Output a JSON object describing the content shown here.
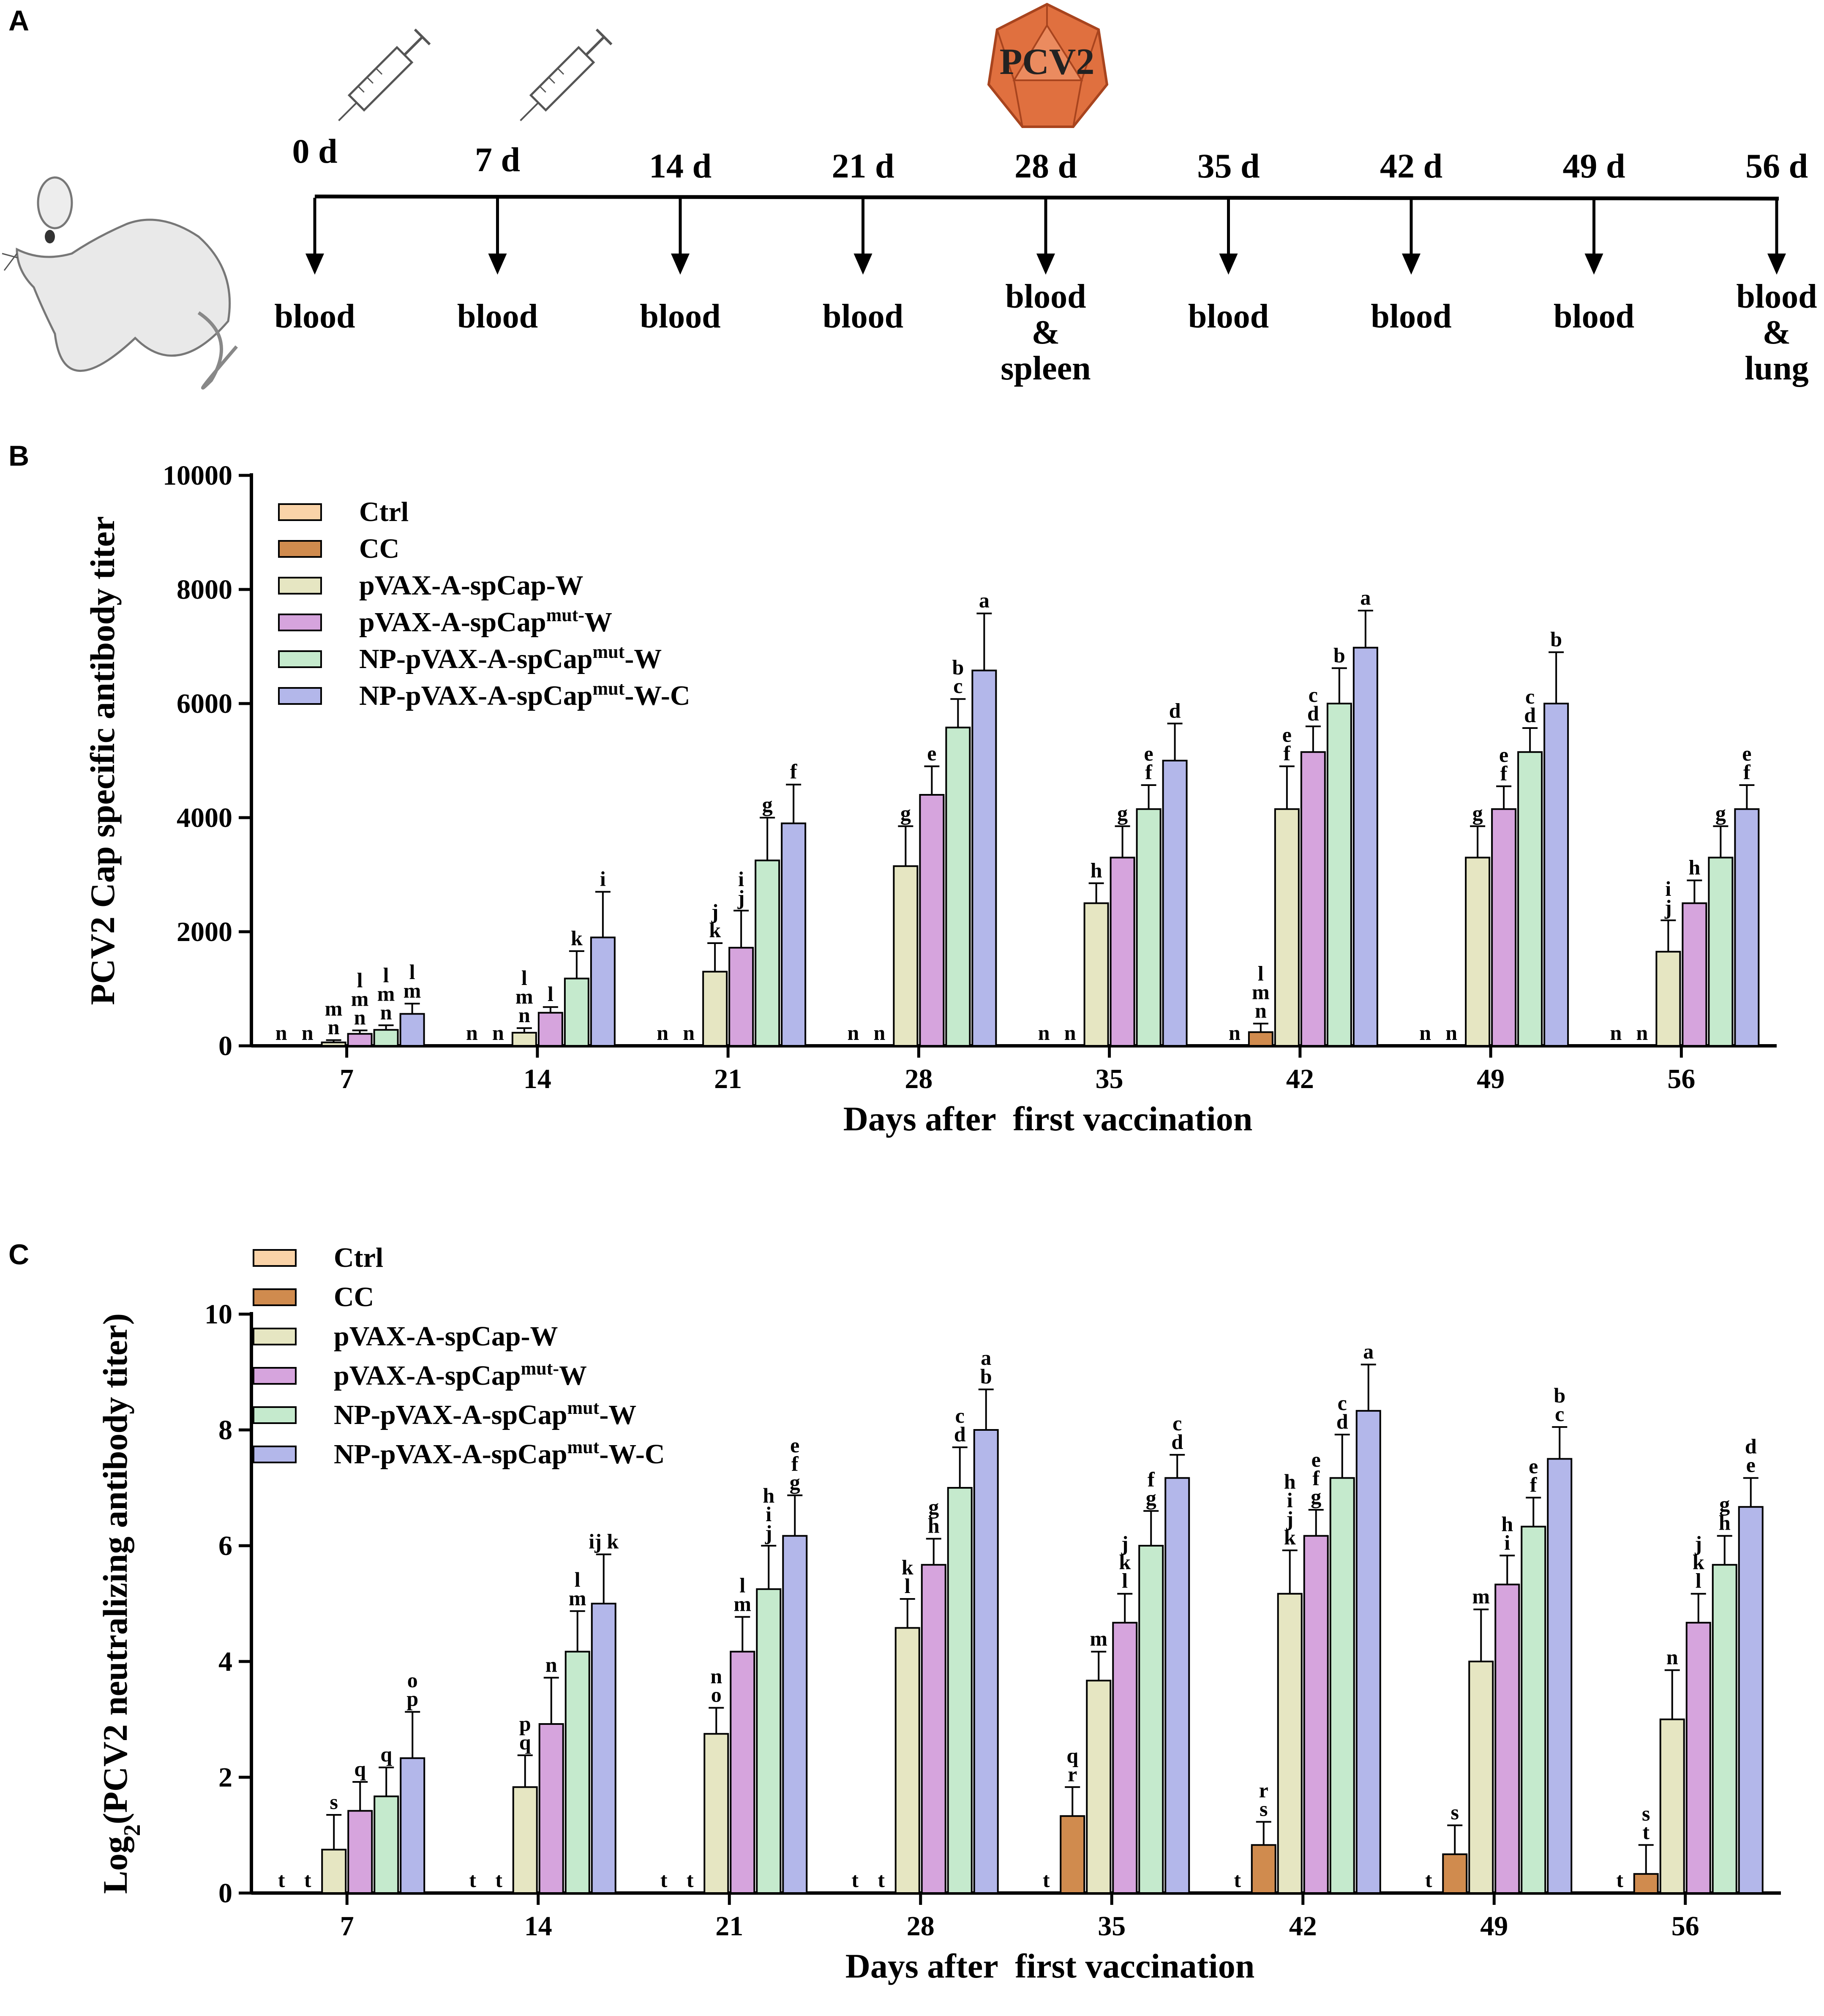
{
  "panels": {
    "a": "A",
    "b": "B",
    "c": "C"
  },
  "timeline": {
    "virus_label": "PCV2",
    "days": [
      "0 d",
      "7 d",
      "14 d",
      "21 d",
      "28 d",
      "35 d",
      "42 d",
      "49 d",
      "56 d"
    ],
    "samples": [
      [
        "blood"
      ],
      [
        "blood"
      ],
      [
        "blood"
      ],
      [
        "blood"
      ],
      [
        "blood",
        "&",
        "spleen"
      ],
      [
        "blood"
      ],
      [
        "blood"
      ],
      [
        "blood"
      ],
      [
        "blood",
        "&",
        "lung"
      ]
    ],
    "injection_days": [
      "0 d",
      "7 d"
    ]
  },
  "legend": [
    {
      "base": "Ctrl",
      "sup": "",
      "tail": "",
      "color": "#FAD3A8"
    },
    {
      "base": "CC",
      "sup": "",
      "tail": "",
      "color": "#D08B4E"
    },
    {
      "base": "pVAX-A-spCap-W",
      "sup": "",
      "tail": "",
      "color": "#E6E6C2"
    },
    {
      "base": "pVAX-A-spCap",
      "sup": "mut-",
      "tail": "W",
      "color": "#D6A4DD"
    },
    {
      "base": "NP-pVAX-A-spCap",
      "sup": "mut",
      "tail": "-W",
      "color": "#C5EACD"
    },
    {
      "base": "NP-pVAX-A-spCap",
      "sup": "mut",
      "tail": "-W-C",
      "color": "#B3B7EA"
    }
  ],
  "chart_data": [
    {
      "type": "bar",
      "id": "B",
      "title": "",
      "xlabel": "Days after  first vaccination",
      "ylabel": "PCV2 Cap specific antibody titer",
      "ylim": [
        0,
        10000
      ],
      "yticks": [
        "0",
        "2000",
        "4000",
        "6000",
        "8000",
        "10000"
      ],
      "categories": [
        "7",
        "14",
        "21",
        "28",
        "35",
        "42",
        "49",
        "56"
      ],
      "series": [
        {
          "name": "Ctrl",
          "values": [
            0,
            0,
            0,
            0,
            0,
            0,
            0,
            0
          ],
          "errors": [
            0,
            0,
            0,
            0,
            0,
            0,
            0,
            0
          ],
          "labels": [
            "n",
            "n",
            "n",
            "n",
            "n",
            "n",
            "n",
            "n"
          ]
        },
        {
          "name": "CC",
          "values": [
            0,
            0,
            0,
            0,
            0,
            240,
            0,
            0
          ],
          "errors": [
            0,
            0,
            0,
            0,
            0,
            150,
            0,
            0
          ],
          "labels": [
            "n",
            "n",
            "n",
            "n",
            "n",
            "l\nm\nn",
            "n",
            "n"
          ]
        },
        {
          "name": "pVAX-A-spCap-W",
          "values": [
            60,
            230,
            1300,
            3150,
            2500,
            4150,
            3300,
            1650
          ],
          "errors": [
            40,
            80,
            500,
            700,
            350,
            750,
            550,
            550
          ],
          "labels": [
            "m\nn",
            "l\nm\nn",
            "j\nk",
            "g",
            "h",
            "e\nf",
            "g",
            "i\nj"
          ]
        },
        {
          "name": "pVAX-A-spCapmut-W",
          "values": [
            210,
            580,
            1720,
            4400,
            3300,
            5150,
            4150,
            2500
          ],
          "errors": [
            60,
            100,
            650,
            500,
            550,
            450,
            400,
            400
          ],
          "labels": [
            "l\nm\nn",
            "l",
            "i\nj",
            "e",
            "g",
            "c\nd",
            "e\nf",
            "h"
          ]
        },
        {
          "name": "NP-pVAX-A-spCapmut-W",
          "values": [
            280,
            1180,
            3250,
            5580,
            4150,
            6000,
            5150,
            3300
          ],
          "errors": [
            80,
            480,
            750,
            500,
            420,
            620,
            420,
            550
          ],
          "labels": [
            "l\nm\nn",
            "k",
            "g",
            "b\nc",
            "e\nf",
            "b",
            "c\nd",
            "g"
          ]
        },
        {
          "name": "NP-pVAX-A-spCapmut-W-C",
          "values": [
            560,
            1900,
            3900,
            6580,
            5000,
            6980,
            6000,
            4150
          ],
          "errors": [
            180,
            800,
            680,
            1000,
            650,
            650,
            900,
            420
          ],
          "labels": [
            "l\nm",
            "i",
            "f",
            "a",
            "d",
            "a",
            "b",
            "e\nf"
          ]
        }
      ]
    },
    {
      "type": "bar",
      "id": "C",
      "title": "",
      "xlabel": "Days after  first vaccination",
      "ylabel_base": "Log",
      "ylabel_sub": "2",
      "ylabel_tail": "(PCV2 neutralizing antibody titer)",
      "ylim": [
        0,
        10
      ],
      "yticks": [
        "0",
        "2",
        "4",
        "6",
        "8",
        "10"
      ],
      "categories": [
        "7",
        "14",
        "21",
        "28",
        "35",
        "42",
        "49",
        "56"
      ],
      "series": [
        {
          "name": "Ctrl",
          "values": [
            0,
            0,
            0,
            0,
            0,
            0,
            0,
            0
          ],
          "errors": [
            0,
            0,
            0,
            0,
            0,
            0,
            0,
            0
          ],
          "labels": [
            "t",
            "t",
            "t",
            "t",
            "t",
            "t",
            "t",
            "t"
          ]
        },
        {
          "name": "CC",
          "values": [
            0,
            0,
            0,
            0,
            1.33,
            0.83,
            0.67,
            0.33
          ],
          "errors": [
            0,
            0,
            0,
            0,
            0.5,
            0.4,
            0.5,
            0.5
          ],
          "labels": [
            "t",
            "t",
            "t",
            "t",
            "q\nr",
            "r\ns",
            "s",
            "s\nt"
          ]
        },
        {
          "name": "pVAX-A-spCap-W",
          "values": [
            0.75,
            1.83,
            2.75,
            4.58,
            3.67,
            5.17,
            4.0,
            3.0
          ],
          "errors": [
            0.6,
            0.55,
            0.45,
            0.5,
            0.5,
            0.75,
            0.9,
            0.85
          ],
          "labels": [
            "s",
            "p\nq",
            "n\no",
            "k\nl",
            "m",
            "h\ni\nj\nk",
            "m",
            "n"
          ]
        },
        {
          "name": "pVAX-A-spCapmut-W",
          "values": [
            1.42,
            2.92,
            4.17,
            5.67,
            4.67,
            6.17,
            5.33,
            4.67
          ],
          "errors": [
            0.5,
            0.8,
            0.6,
            0.45,
            0.5,
            0.45,
            0.5,
            0.5
          ],
          "labels": [
            "q",
            "n",
            "l\nm",
            "g\nh",
            "j\nk\nl",
            "e\nf\ng",
            "h\ni",
            "j\nk\nl"
          ]
        },
        {
          "name": "NP-pVAX-A-spCapmut-W",
          "values": [
            1.67,
            4.17,
            5.25,
            7.0,
            6.0,
            7.17,
            6.33,
            5.67
          ],
          "errors": [
            0.5,
            0.7,
            0.75,
            0.7,
            0.6,
            0.75,
            0.5,
            0.5
          ],
          "labels": [
            "q",
            "l\nm",
            "h\ni\nj",
            "c\nd",
            "f\ng",
            "c\nd",
            "e\nf",
            "g\nh"
          ]
        },
        {
          "name": "NP-pVAX-A-spCapmut-W-C",
          "values": [
            2.33,
            5.0,
            6.17,
            8.0,
            7.17,
            8.33,
            7.5,
            6.67
          ],
          "errors": [
            0.8,
            0.85,
            0.7,
            0.7,
            0.4,
            0.8,
            0.55,
            0.5
          ],
          "labels": [
            "o\np",
            "ij k",
            "e\nf\ng",
            "a\nb",
            "c\nd",
            "a",
            "b\nc",
            "d\ne"
          ]
        }
      ]
    }
  ]
}
